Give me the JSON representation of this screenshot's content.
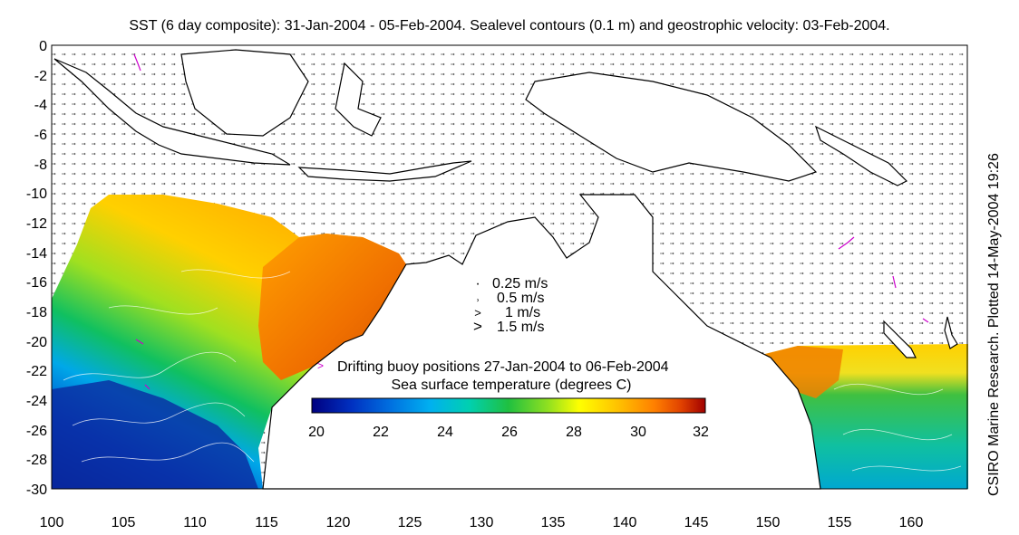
{
  "title": "SST (6 day composite): 31-Jan-2004 - 05-Feb-2004. Sealevel contours (0.1 m) and geostrophic velocity: 03-Feb-2004.",
  "credit": "CSIRO Marine Research. Plotted 14-May-2004 19:26",
  "y_ticks": [
    "0",
    "-2",
    "-4",
    "-6",
    "-8",
    "-10",
    "-12",
    "-14",
    "-16",
    "-18",
    "-20",
    "-22",
    "-24",
    "-26",
    "-28",
    "-30"
  ],
  "x_ticks": [
    "100",
    "105",
    "110",
    "115",
    "120",
    "125",
    "130",
    "135",
    "140",
    "145",
    "150",
    "155",
    "160"
  ],
  "velocity_legend": {
    "items": [
      {
        "symbol": "·",
        "label": "0.25 m/s"
      },
      {
        "symbol": "˒",
        "label": "0.5 m/s"
      },
      {
        "symbol": ">",
        "label": "1 m/s"
      },
      {
        "symbol": ">",
        "label": "1.5 m/s"
      }
    ]
  },
  "buoy_legend": {
    "symbol": ">",
    "label": "Drifting buoy positions 27-Jan-2004 to 06-Feb-2004",
    "color": "#cc00cc"
  },
  "colorbar": {
    "title": "Sea surface temperature (degrees C)",
    "ticks": [
      "20",
      "22",
      "24",
      "26",
      "28",
      "30",
      "32"
    ],
    "range": [
      20,
      32
    ]
  },
  "colors": {
    "land": "#ffffff",
    "coastline": "#000000",
    "buoy": "#cc00cc",
    "sst_scale": [
      "#000080",
      "#0030c0",
      "#0070e0",
      "#00b0f0",
      "#00d0b0",
      "#20c040",
      "#90e020",
      "#ffff00",
      "#ffc000",
      "#ff8000",
      "#e04000",
      "#a00000"
    ]
  },
  "map": {
    "lon_range": [
      100,
      164
    ],
    "lat_range": [
      -30,
      0
    ]
  }
}
